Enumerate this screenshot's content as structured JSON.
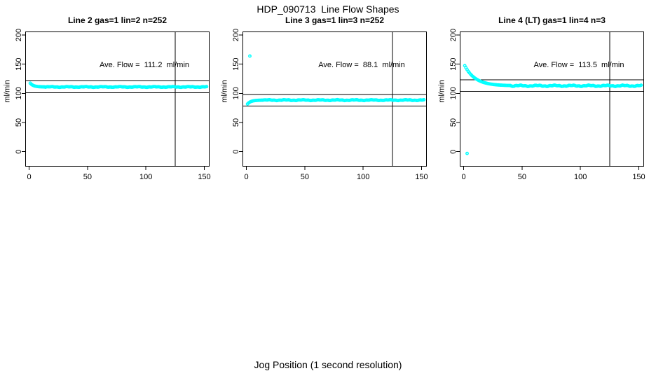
{
  "page": {
    "title": "HDP_090713  Line Flow Shapes",
    "xlabel": "Jog Position (1 second resolution)",
    "background": "#FFFFFF"
  },
  "chart_data": {
    "type": "scatter",
    "title": "HDP_090713  Line Flow Shapes",
    "xlabel": "Jog Position (1 second resolution)",
    "ylabel": "ml/min",
    "point_color": "#00FFFF",
    "line_color": "#000000",
    "grid": false,
    "x_ticks": [
      0,
      50,
      100,
      150
    ],
    "y_ticks": [
      0,
      50,
      100,
      150,
      200
    ],
    "xlim": [
      -3.3,
      154.5
    ],
    "ylim": [
      -25.6,
      206.1
    ],
    "vline_x": 125,
    "panels": [
      {
        "title": "Line 2 gas=1 lin=2 n=252",
        "ave_flow": 111.2,
        "ave_flow_label": "Ave. Flow =  111.2  ml/min",
        "hlines": [
          121.2,
          101.2
        ],
        "head_points": [
          [
            1,
            117.4
          ],
          [
            2,
            115.5
          ],
          [
            3,
            114.1
          ],
          [
            4,
            113.2
          ],
          [
            5,
            112.5
          ],
          [
            6,
            112.1
          ],
          [
            7,
            111.8
          ],
          [
            8,
            111.5
          ],
          [
            9,
            111.4
          ],
          [
            10,
            111.3
          ],
          [
            11,
            111.2
          ],
          [
            12,
            111.1
          ],
          [
            13,
            111.1
          ]
        ],
        "flat_tail": {
          "x_from": 14,
          "x_to": 152,
          "y": 111.0,
          "scatter": 0.7
        },
        "outliers": []
      },
      {
        "title": "Line 3 gas=1 lin=3 n=252",
        "ave_flow": 88.1,
        "ave_flow_label": "Ave. Flow =  88.1  ml/min",
        "hlines": [
          98.1,
          78.1
        ],
        "head_points": [
          [
            1,
            81.8
          ],
          [
            2,
            83.7
          ],
          [
            3,
            85.0
          ],
          [
            4,
            86.0
          ],
          [
            5,
            86.7
          ],
          [
            6,
            87.2
          ],
          [
            7,
            87.5
          ],
          [
            8,
            87.8
          ],
          [
            9,
            87.9
          ],
          [
            10,
            88.1
          ],
          [
            11,
            88.2
          ],
          [
            12,
            88.2
          ],
          [
            13,
            88.3
          ],
          [
            14,
            88.3
          ]
        ],
        "flat_tail": {
          "x_from": 15,
          "x_to": 152,
          "y": 88.4,
          "scatter": 0.8
        },
        "outliers": [
          [
            3,
            164
          ]
        ]
      },
      {
        "title": "Line 4 (LT) gas=1 lin=4 n=3",
        "ave_flow": 113.5,
        "ave_flow_label": "Ave. Flow =  113.5  ml/min",
        "hlines": [
          123.5,
          103.5
        ],
        "head_points": [
          [
            1,
            147.5
          ],
          [
            2,
            143.9
          ],
          [
            3,
            140.6
          ],
          [
            4,
            137.7
          ],
          [
            5,
            135.1
          ],
          [
            6,
            132.8
          ],
          [
            7,
            130.7
          ],
          [
            8,
            128.8
          ],
          [
            9,
            127.2
          ],
          [
            10,
            125.7
          ],
          [
            11,
            124.4
          ],
          [
            12,
            123.2
          ],
          [
            13,
            122.1
          ],
          [
            14,
            121.1
          ],
          [
            15,
            120.3
          ],
          [
            16,
            119.5
          ],
          [
            17,
            118.8
          ],
          [
            18,
            118.2
          ],
          [
            19,
            117.7
          ],
          [
            20,
            117.2
          ],
          [
            21,
            116.7
          ],
          [
            22,
            116.3
          ],
          [
            23,
            116.0
          ],
          [
            24,
            115.7
          ],
          [
            25,
            115.4
          ],
          [
            26,
            115.1
          ],
          [
            27,
            114.9
          ],
          [
            28,
            114.7
          ],
          [
            29,
            114.5
          ],
          [
            30,
            114.4
          ],
          [
            31,
            114.2
          ],
          [
            32,
            114.1
          ],
          [
            33,
            114.0
          ],
          [
            34,
            113.9
          ],
          [
            35,
            113.8
          ],
          [
            36,
            113.7
          ],
          [
            37,
            113.6
          ],
          [
            38,
            113.6
          ],
          [
            39,
            113.5
          ],
          [
            40,
            113.5
          ]
        ],
        "flat_tail": {
          "x_from": 41,
          "x_to": 152,
          "y": 113.0,
          "scatter": 1.2
        },
        "outliers": [
          [
            3,
            -3
          ]
        ]
      }
    ]
  }
}
